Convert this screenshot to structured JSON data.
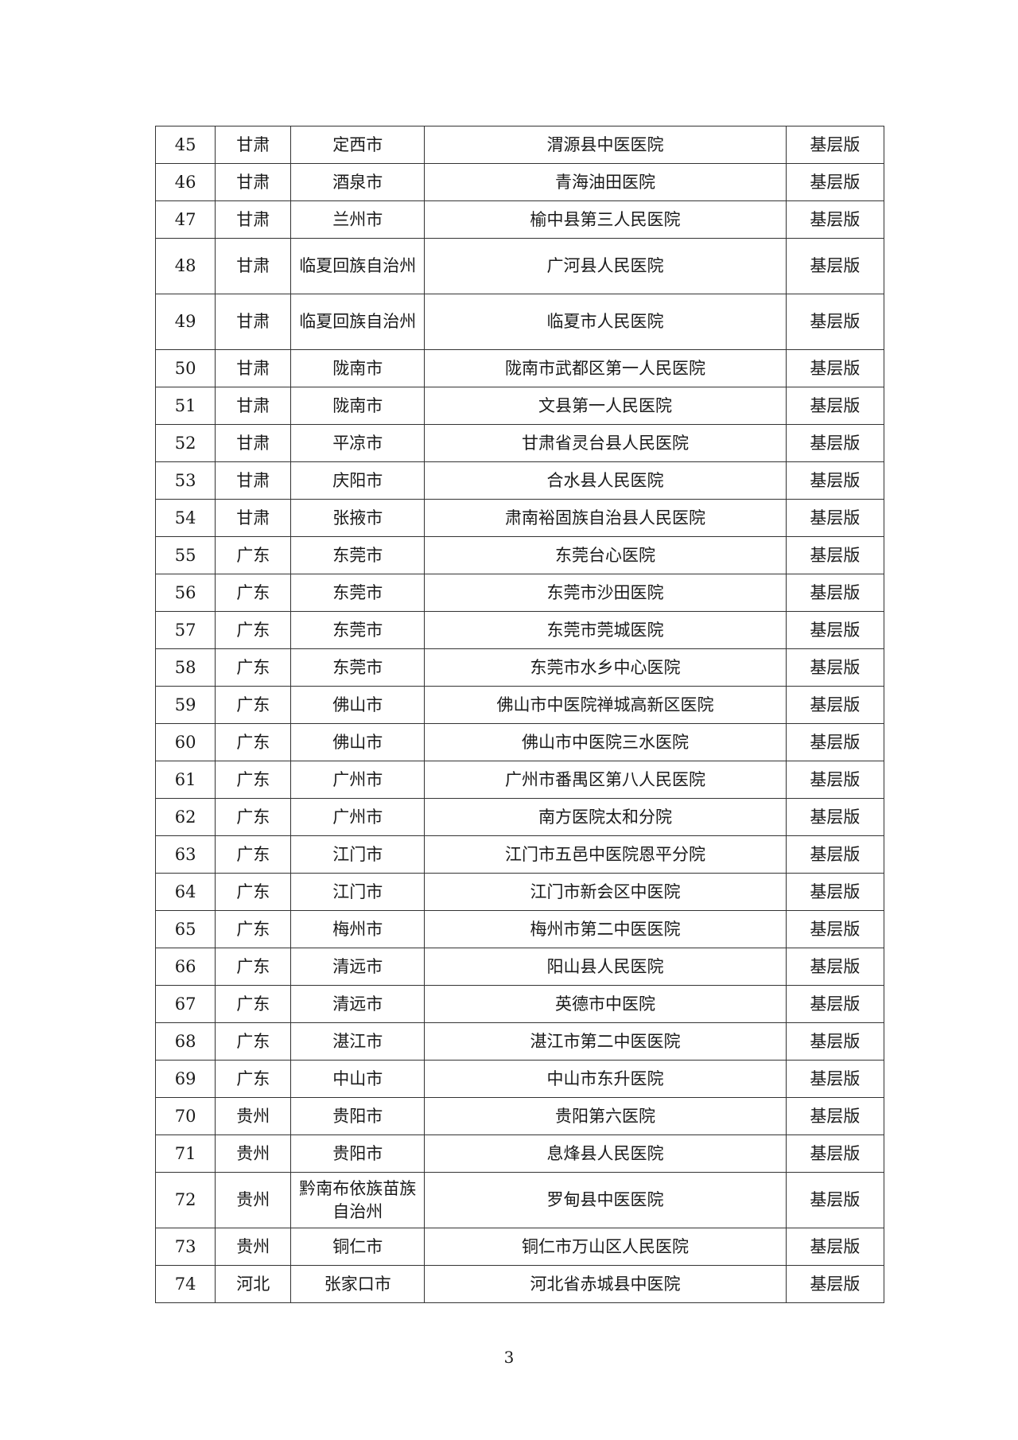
{
  "rows": [
    [
      "45",
      "甘肃",
      "定西市",
      "渭源县中医医院",
      "基层版"
    ],
    [
      "46",
      "甘肃",
      "酒泉市",
      "青海油田医院",
      "基层版"
    ],
    [
      "47",
      "甘肃",
      "兰州市",
      "榆中县第三人民医院",
      "基层版"
    ],
    [
      "48",
      "甘肃",
      "临夏回族自治州",
      "广河县人民医院",
      "基层版"
    ],
    [
      "49",
      "甘肃",
      "临夏回族自治州",
      "临夏市人民医院",
      "基层版"
    ],
    [
      "50",
      "甘肃",
      "陇南市",
      "陇南市武都区第一人民医院",
      "基层版"
    ],
    [
      "51",
      "甘肃",
      "陇南市",
      "文县第一人民医院",
      "基层版"
    ],
    [
      "52",
      "甘肃",
      "平凉市",
      "甘肃省灵台县人民医院",
      "基层版"
    ],
    [
      "53",
      "甘肃",
      "庆阳市",
      "合水县人民医院",
      "基层版"
    ],
    [
      "54",
      "甘肃",
      "张掖市",
      "肃南裕固族自治县人民医院",
      "基层版"
    ],
    [
      "55",
      "广东",
      "东莞市",
      "东莞台心医院",
      "基层版"
    ],
    [
      "56",
      "广东",
      "东莞市",
      "东莞市沙田医院",
      "基层版"
    ],
    [
      "57",
      "广东",
      "东莞市",
      "东莞市莞城医院",
      "基层版"
    ],
    [
      "58",
      "广东",
      "东莞市",
      "东莞市水乡中心医院",
      "基层版"
    ],
    [
      "59",
      "广东",
      "佛山市",
      "佛山市中医院禅城高新区医院",
      "基层版"
    ],
    [
      "60",
      "广东",
      "佛山市",
      "佛山市中医院三水医院",
      "基层版"
    ],
    [
      "61",
      "广东",
      "广州市",
      "广州市番禺区第八人民医院",
      "基层版"
    ],
    [
      "62",
      "广东",
      "广州市",
      "南方医院太和分院",
      "基层版"
    ],
    [
      "63",
      "广东",
      "江门市",
      "江门市五邑中医院恩平分院",
      "基层版"
    ],
    [
      "64",
      "广东",
      "江门市",
      "江门市新会区中医院",
      "基层版"
    ],
    [
      "65",
      "广东",
      "梅州市",
      "梅州市第二中医医院",
      "基层版"
    ],
    [
      "66",
      "广东",
      "清远市",
      "阳山县人民医院",
      "基层版"
    ],
    [
      "67",
      "广东",
      "清远市",
      "英德市中医院",
      "基层版"
    ],
    [
      "68",
      "广东",
      "湛江市",
      "湛江市第二中医医院",
      "基层版"
    ],
    [
      "69",
      "广东",
      "中山市",
      "中山市东升医院",
      "基层版"
    ],
    [
      "70",
      "贵州",
      "贵阳市",
      "贵阳第六医院",
      "基层版"
    ],
    [
      "71",
      "贵州",
      "贵阳市",
      "息烽县人民医院",
      "基层版"
    ],
    [
      "72",
      "贵州",
      "黔南布依族苗族自治州",
      "罗甸县中医医院",
      "基层版"
    ],
    [
      "73",
      "贵州",
      "铜仁市",
      "铜仁市万山区人民医院",
      "基层版"
    ],
    [
      "74",
      "河北",
      "张家口市",
      "河北省赤城县中医院",
      "基层版"
    ]
  ],
  "page_number": "3"
}
